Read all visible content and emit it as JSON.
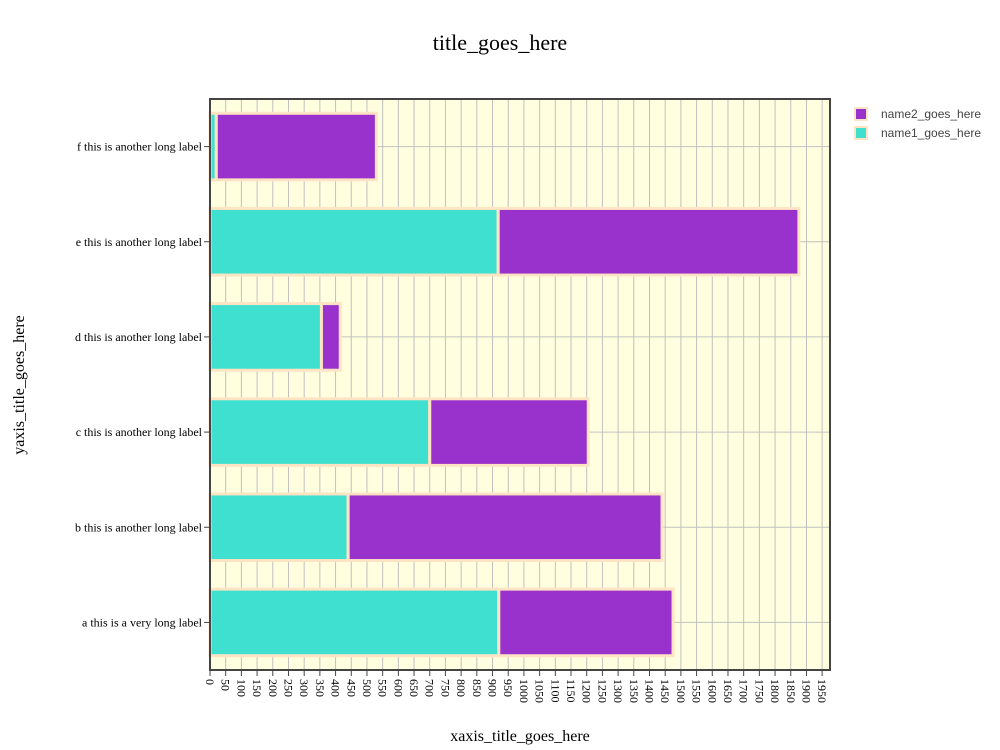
{
  "chart_data": {
    "type": "bar",
    "orientation": "horizontal",
    "barmode": "stack",
    "title": "title_goes_here",
    "xlabel": "xaxis_title_goes_here",
    "ylabel": "yaxis_title_goes_here",
    "xlim": [
      0,
      1975
    ],
    "x_tick_step": 50,
    "categories": [
      "a this is a very long label",
      "b this is another long label",
      "c this is another long label",
      "d this is another long label",
      "e this is another long label",
      "f this is another long label"
    ],
    "series": [
      {
        "name": "name1_goes_here",
        "color": "#40e0d0",
        "values": [
          920,
          440,
          700,
          355,
          918,
          20
        ]
      },
      {
        "name": "name2_goes_here",
        "color": "#9932cc",
        "values": [
          555,
          1000,
          505,
          60,
          958,
          510
        ]
      }
    ],
    "bar_outline_color": "#ffe4c4",
    "plot_background": "#ffffe0",
    "grid": true,
    "legend_position": "top-right"
  }
}
